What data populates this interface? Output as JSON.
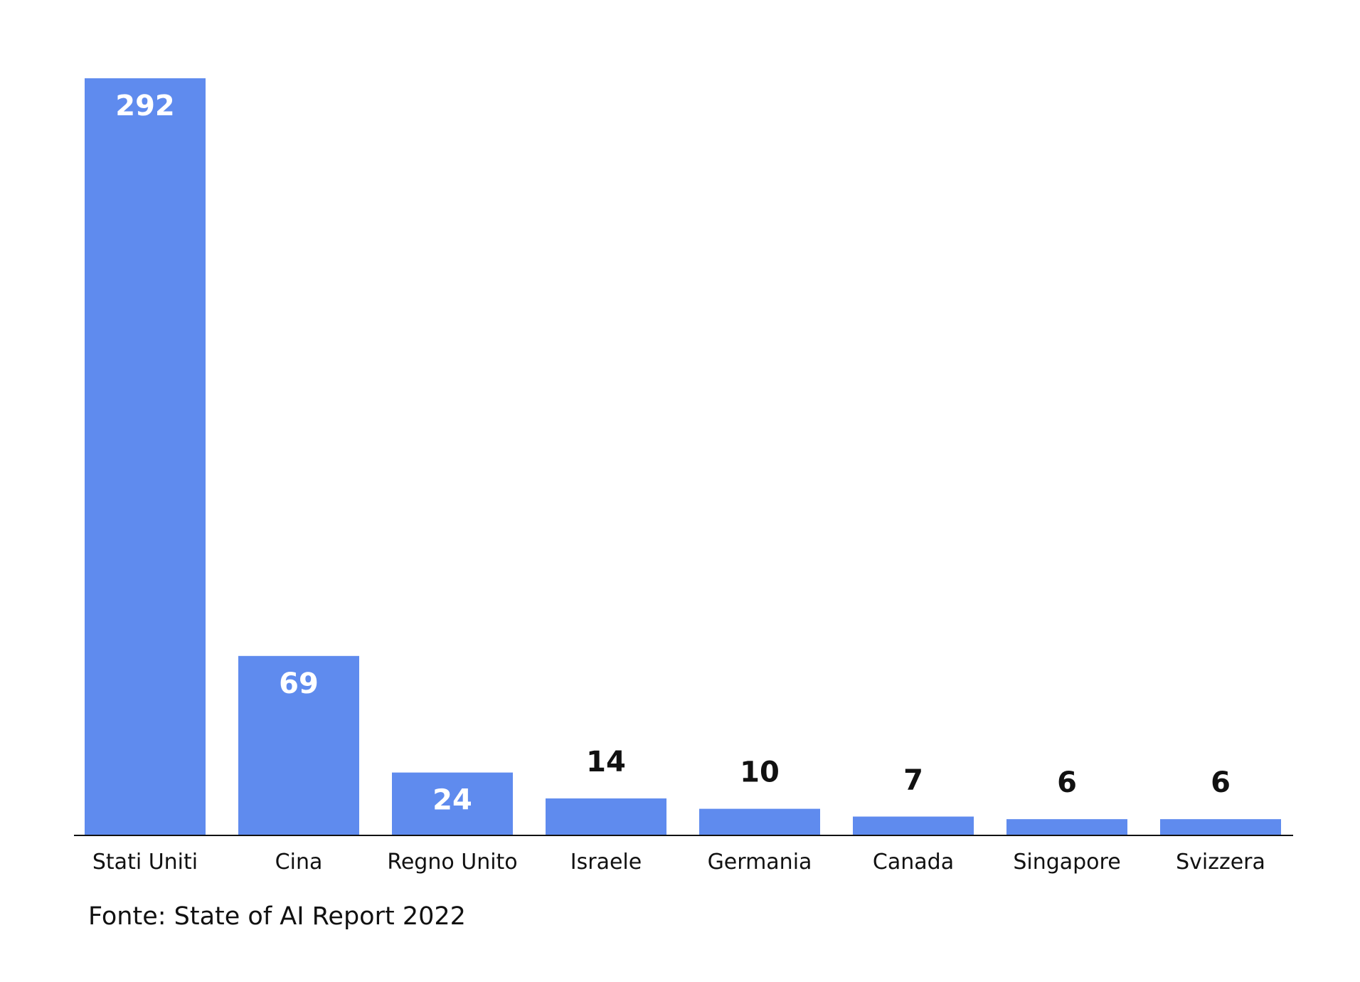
{
  "chart_data": {
    "type": "bar",
    "categories": [
      "Stati Uniti",
      "Cina",
      "Regno Unito",
      "Israele",
      "Germania",
      "Canada",
      "Singapore",
      "Svizzera"
    ],
    "values": [
      292,
      69,
      24,
      14,
      10,
      7,
      6,
      6
    ],
    "title": "",
    "xlabel": "",
    "ylabel": "",
    "ylim": [
      0,
      292
    ],
    "grid": false,
    "legend": "none",
    "bar_color": "#5f8bee",
    "label_inside_color": "#ffffff",
    "label_outside_color": "#111111",
    "axis_color": "#111111"
  },
  "source": "Fonte: State of AI Report 2022"
}
